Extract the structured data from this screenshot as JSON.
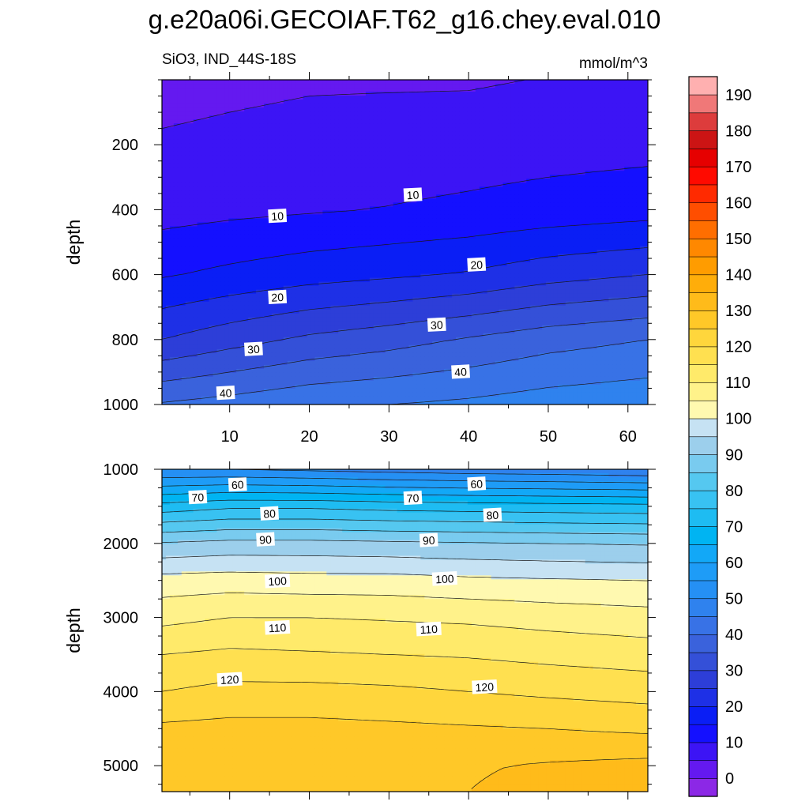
{
  "title": "g.e20a06i.GECOIAF.T62_g16.chey.eval.010",
  "subtitle_left": "SiO3, IND_44S-18S",
  "subtitle_right": "mmol/m^3",
  "colors": {
    "levels": [
      0,
      5,
      10,
      15,
      20,
      25,
      30,
      35,
      40,
      45,
      50,
      55,
      60,
      65,
      70,
      75,
      80,
      85,
      90,
      95,
      100,
      105,
      110,
      115,
      120,
      125,
      130,
      135,
      140,
      145,
      150,
      155,
      160,
      165,
      170,
      175,
      180,
      185,
      190
    ],
    "palette": [
      "#8c28e6",
      "#6419f0",
      "#3c14f5",
      "#1410ff",
      "#0a1ef5",
      "#1e30e6",
      "#2d3ed8",
      "#3450d8",
      "#3a62dc",
      "#3872e6",
      "#2f82ee",
      "#2590f4",
      "#1e9cf7",
      "#12a8f7",
      "#00b4f2",
      "#1ebcf2",
      "#38c2f2",
      "#55c8f0",
      "#79cbef",
      "#9ccfec",
      "#c6e2f3",
      "#fff9b0",
      "#fff28a",
      "#ffea6a",
      "#ffe050",
      "#ffd63c",
      "#ffc828",
      "#ffbb1a",
      "#ffad0a",
      "#ff9c00",
      "#ff8800",
      "#ff6e00",
      "#ff4e00",
      "#ff2a00",
      "#ff0a00",
      "#e60000",
      "#cc1414",
      "#dd3c3c",
      "#f07878",
      "#ffb0b0"
    ]
  },
  "colorbar": {
    "labels": [
      "0",
      "10",
      "20",
      "30",
      "40",
      "50",
      "60",
      "70",
      "80",
      "90",
      "100",
      "110",
      "120",
      "130",
      "140",
      "150",
      "160",
      "170",
      "180",
      "190"
    ]
  },
  "chart_data": [
    {
      "type": "contour",
      "panel": "upper",
      "ylabel": "depth",
      "xlabel": "",
      "xlim": [
        1.5,
        62.5
      ],
      "ylim": [
        0,
        1000
      ],
      "xticks": [
        "10",
        "20",
        "30",
        "40",
        "50",
        "60"
      ],
      "yticks": [
        "200",
        "400",
        "600",
        "800",
        "1000"
      ],
      "contour_interval": 5,
      "x": [
        1.5,
        10,
        20,
        30,
        40,
        50,
        62.5
      ],
      "depth": [
        0,
        200,
        400,
        600,
        800,
        1000
      ],
      "values": [
        [
          3.5,
          4.0,
          4.5,
          4.5,
          4.5,
          5.2,
          6.0
        ],
        [
          5.5,
          6.0,
          6.5,
          7.0,
          7.5,
          8.0,
          8.5
        ],
        [
          8.0,
          8.8,
          9.5,
          10.2,
          11.0,
          12.0,
          13.0
        ],
        [
          14.5,
          16.2,
          18.0,
          19.2,
          20.5,
          23.0,
          25.0
        ],
        [
          25.0,
          28.0,
          31.0,
          33.0,
          35.5,
          38.0,
          40.0
        ],
        [
          40.5,
          42.0,
          44.0,
          45.0,
          46.0,
          47.5,
          48.5
        ]
      ],
      "contour_labels": [
        {
          "text": "10",
          "x": 16,
          "depth": 420
        },
        {
          "text": "10",
          "x": 33,
          "depth": 355
        },
        {
          "text": "20",
          "x": 16,
          "depth": 670
        },
        {
          "text": "20",
          "x": 41,
          "depth": 570
        },
        {
          "text": "30",
          "x": 13,
          "depth": 830
        },
        {
          "text": "30",
          "x": 36,
          "depth": 755
        },
        {
          "text": "40",
          "x": 9.5,
          "depth": 965
        },
        {
          "text": "40",
          "x": 39,
          "depth": 900
        }
      ]
    },
    {
      "type": "contour",
      "panel": "lower",
      "ylabel": "depth",
      "xlabel": "",
      "xlim": [
        1.5,
        62.5
      ],
      "ylim": [
        1000,
        5350
      ],
      "xticks": [],
      "yticks": [
        "1000",
        "2000",
        "3000",
        "4000",
        "5000"
      ],
      "contour_interval": 5,
      "x": [
        1.5,
        10,
        20,
        30,
        40,
        50,
        62.5
      ],
      "depth": [
        1000,
        1500,
        2000,
        2500,
        3000,
        3500,
        4000,
        4500,
        5000,
        5350
      ],
      "values": [
        [
          50.0,
          50.0,
          49.0,
          48.0,
          47.0,
          46.5,
          45.5
        ],
        [
          72.0,
          74.0,
          74.0,
          73.0,
          72.5,
          72.0,
          71.5
        ],
        [
          90.5,
          91.5,
          91.5,
          91.0,
          90.5,
          90.0,
          89.5
        ],
        [
          102.0,
          102.5,
          102.0,
          102.0,
          101.0,
          100.5,
          100.0
        ],
        [
          108.5,
          110.0,
          110.0,
          109.5,
          109.0,
          108.0,
          107.0
        ],
        [
          115.0,
          116.0,
          115.5,
          115.0,
          114.5,
          113.5,
          112.5
        ],
        [
          120.0,
          121.5,
          121.5,
          121.0,
          120.0,
          119.0,
          118.0
        ],
        [
          126.0,
          126.5,
          126.5,
          126.0,
          125.5,
          125.0,
          124.0
        ],
        [
          129.0,
          129.5,
          129.5,
          129.5,
          129.5,
          130.5,
          131.5
        ],
        [
          130.0,
          130.0,
          130.0,
          130.0,
          130.0,
          131.5,
          133.0
        ]
      ],
      "contour_labels": [
        {
          "text": "60",
          "x": 11,
          "depth": 1210
        },
        {
          "text": "60",
          "x": 41,
          "depth": 1200
        },
        {
          "text": "70",
          "x": 6,
          "depth": 1380
        },
        {
          "text": "70",
          "x": 33,
          "depth": 1390
        },
        {
          "text": "80",
          "x": 15,
          "depth": 1600
        },
        {
          "text": "80",
          "x": 43,
          "depth": 1620
        },
        {
          "text": "90",
          "x": 14.5,
          "depth": 1950
        },
        {
          "text": "90",
          "x": 35,
          "depth": 1960
        },
        {
          "text": "100",
          "x": 16,
          "depth": 2510
        },
        {
          "text": "100",
          "x": 37,
          "depth": 2480
        },
        {
          "text": "110",
          "x": 16,
          "depth": 3140
        },
        {
          "text": "110",
          "x": 35,
          "depth": 3160
        },
        {
          "text": "120",
          "x": 10,
          "depth": 3840
        },
        {
          "text": "120",
          "x": 42,
          "depth": 3940
        }
      ]
    }
  ]
}
